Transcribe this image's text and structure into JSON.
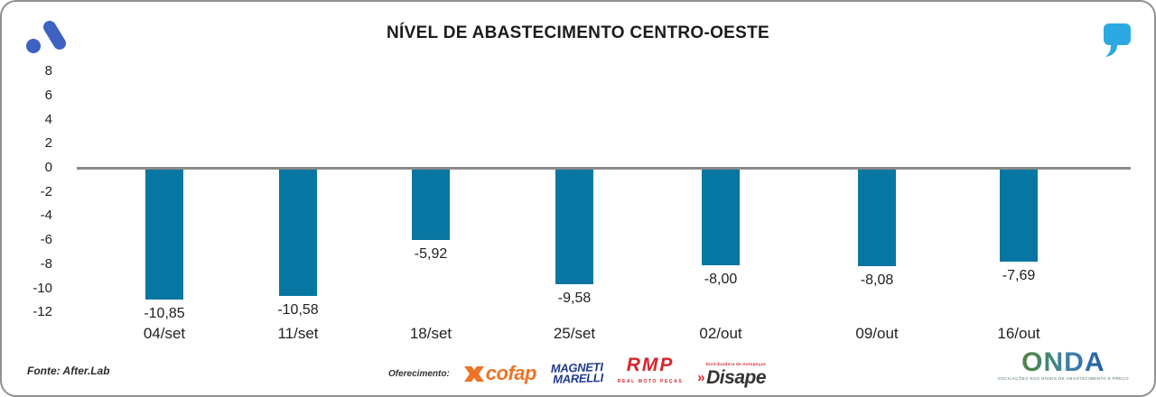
{
  "header": {
    "title": "NÍVEL DE ABASTECIMENTO CENTRO-OESTE"
  },
  "chart_data": {
    "type": "bar",
    "title": "NÍVEL DE ABASTECIMENTO CENTRO-OESTE",
    "categories": [
      "04/set",
      "11/set",
      "18/set",
      "25/set",
      "02/out",
      "09/out",
      "16/out"
    ],
    "values": [
      -10.85,
      -10.58,
      -5.92,
      -9.58,
      -8.0,
      -8.08,
      -7.69
    ],
    "value_labels": [
      "-10,85",
      "-10,58",
      "-5,92",
      "-9,58",
      "-8,00",
      "-8,08",
      "-7,69"
    ],
    "yticks": [
      8,
      6,
      4,
      2,
      0,
      -2,
      -4,
      -6,
      -8,
      -10,
      -12
    ],
    "ylim": [
      -12,
      8
    ],
    "xlabel": "",
    "ylabel": "",
    "grid": false,
    "zero_line": true,
    "legend": "none",
    "bar_color": "#0876a3"
  },
  "footer": {
    "source": "Fonte: After.Lab",
    "sponsor_label": "Oferecimento:",
    "sponsors": {
      "cofap": {
        "text": "cofap",
        "color": "#ee7326"
      },
      "magneti": {
        "line1": "MAGNETI",
        "line2": "MARELLI",
        "color": "#1e3a8c"
      },
      "rmp": {
        "text": "RMP",
        "subtext": "REAL MOTO PEÇAS",
        "color": "#d6252b"
      },
      "disape": {
        "prefix": "»",
        "text": "Disape",
        "subtext": "Distribuidora de Autopeças"
      }
    },
    "onda": {
      "text": "ONDA",
      "tagline": "OSCILAÇÕES NOS NÍVEIS DE ABASTECIMENTO E PREÇO"
    }
  },
  "colors": {
    "bar": "#0876a3",
    "zero_line": "#8a8a8a",
    "a_logo": "#3e61c4",
    "quote_icon": "#2ba9e0",
    "title_text": "#1b1b1b"
  }
}
